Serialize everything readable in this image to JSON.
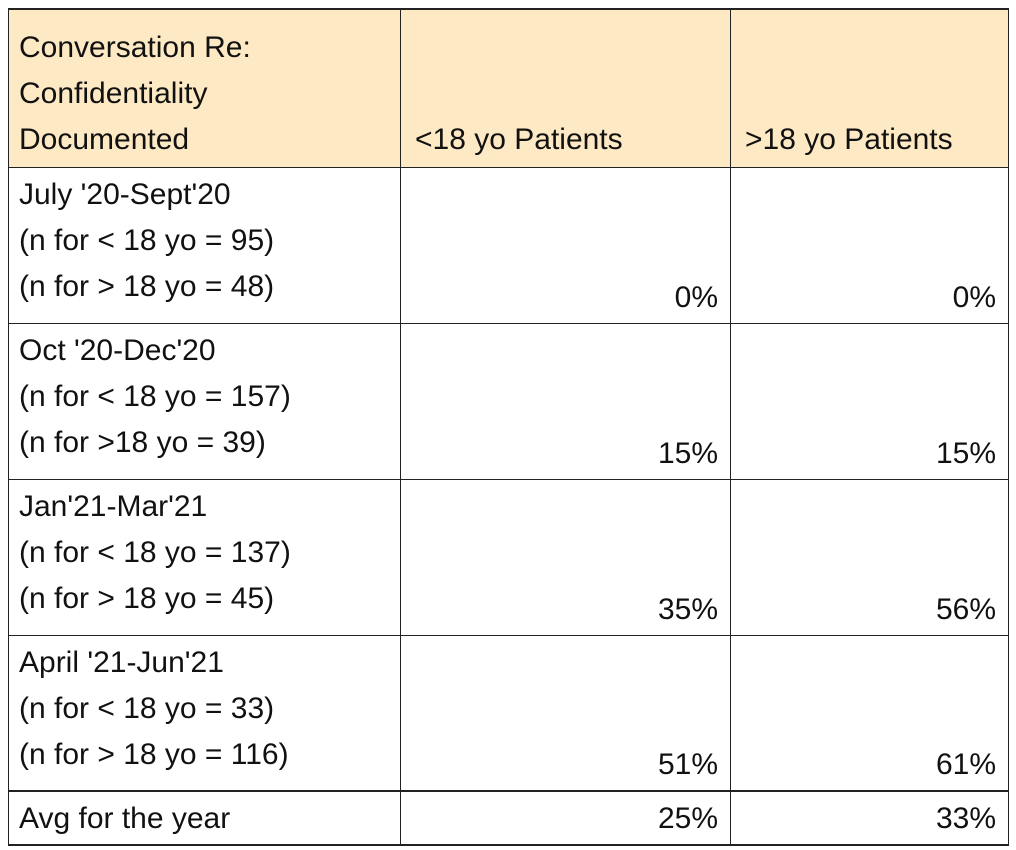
{
  "table": {
    "header": {
      "title_lines": [
        "Conversation Re:",
        "Confidentiality",
        "Documented"
      ],
      "col_under18": "<18 yo Patients",
      "col_over18": ">18 yo Patients"
    },
    "rows": [
      {
        "period": "July '20-Sept'20",
        "n_under18": "(n for < 18 yo = 95)",
        "n_over18": "(n for > 18 yo = 48)",
        "under18": "0%",
        "over18": "0%"
      },
      {
        "period": "Oct '20-Dec'20",
        "n_under18": "(n for < 18 yo = 157)",
        "n_over18": "(n for >18 yo = 39)",
        "under18": "15%",
        "over18": "15%"
      },
      {
        "period": "Jan'21-Mar'21",
        "n_under18": "(n for < 18 yo = 137)",
        "n_over18": "(n for > 18 yo = 45)",
        "under18": "35%",
        "over18": "56%"
      },
      {
        "period": "April '21-Jun'21",
        "n_under18": "(n for < 18 yo = 33)",
        "n_over18": "(n for > 18 yo = 116)",
        "under18": "51%",
        "over18": "61%"
      }
    ],
    "average": {
      "label": "Avg for the year",
      "under18": "25%",
      "over18": "33%"
    }
  },
  "colors": {
    "header_fill": "#fde9c3",
    "border": "#222222",
    "text": "#111111"
  }
}
